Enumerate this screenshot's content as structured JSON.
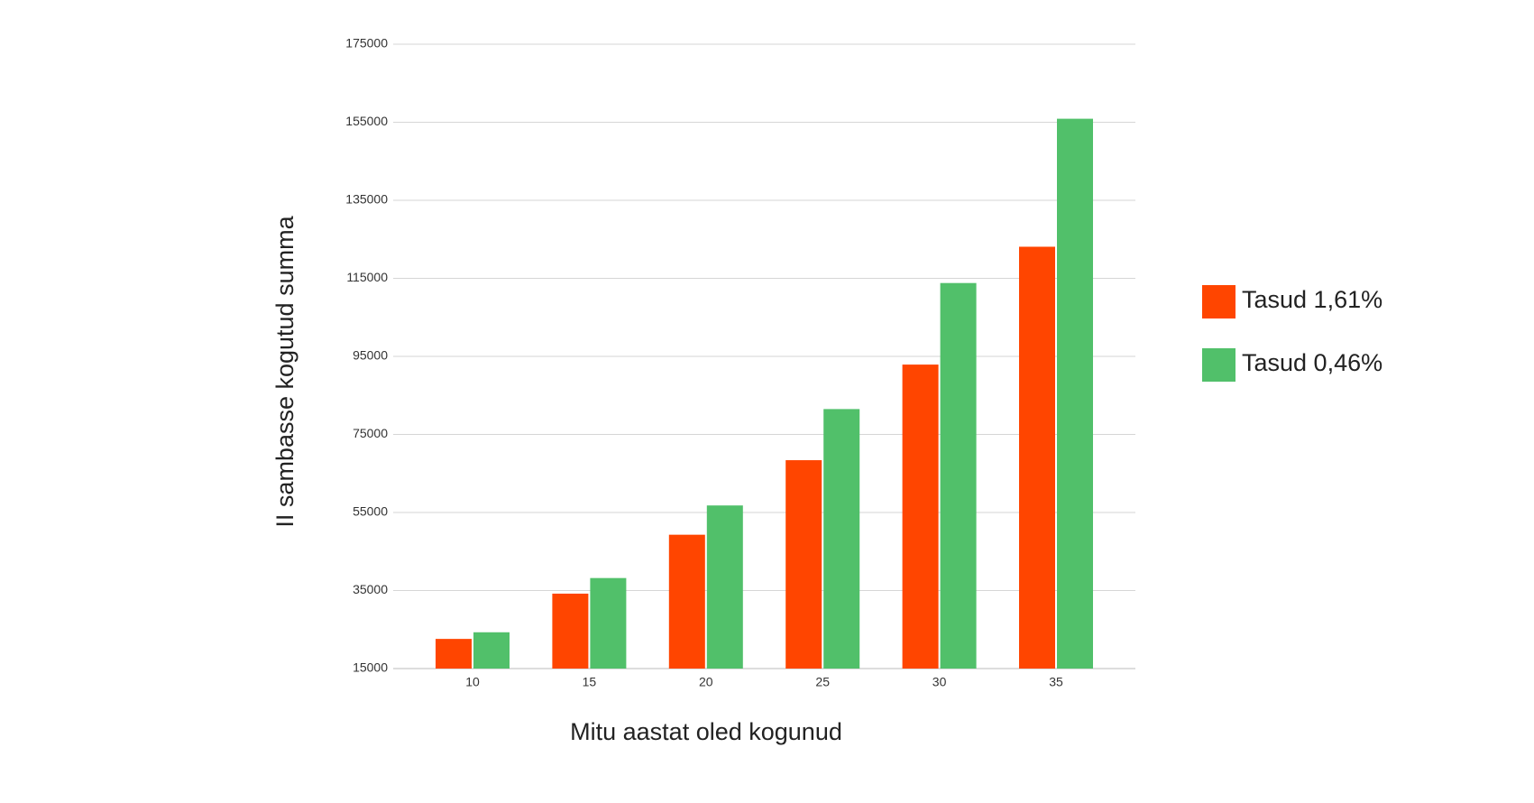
{
  "chart_data": {
    "type": "bar",
    "x_label": "Mitu aastat oled kogunud",
    "y_label": "II sambasse kogutud summa",
    "categories": [
      "10",
      "15",
      "20",
      "25",
      "30",
      "35"
    ],
    "series": [
      {
        "name": "Tasud 1,61%",
        "color": "#ff4500",
        "values": [
          22600,
          34200,
          49300,
          68400,
          92900,
          123100
        ]
      },
      {
        "name": "Tasud 0,46%",
        "color": "#51c06a",
        "values": [
          24300,
          38200,
          56800,
          81500,
          113800,
          155900
        ]
      }
    ],
    "ylim": [
      15000,
      175000
    ],
    "yticks": [
      15000,
      35000,
      55000,
      75000,
      95000,
      115000,
      135000,
      155000,
      175000
    ],
    "grid": true,
    "legend": "right"
  }
}
